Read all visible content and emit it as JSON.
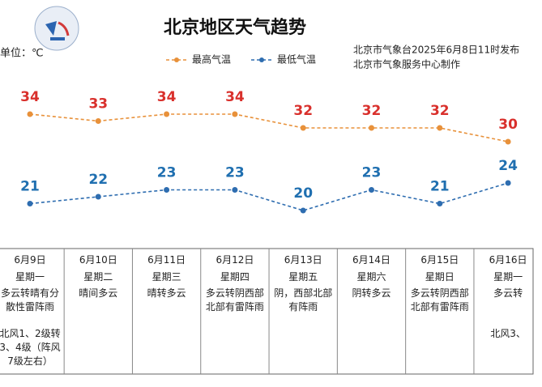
{
  "chart_data": {
    "type": "line",
    "title": "北京地区天气趋势",
    "unit": "单位：℃",
    "source": [
      "北京市气象台2025年6月8日11时发布",
      "北京市气象服务中心制作"
    ],
    "categories": [
      "6月9日",
      "6月10日",
      "6月11日",
      "6月12日",
      "6月13日",
      "6月14日",
      "6月15日",
      "6月16日"
    ],
    "series": [
      {
        "name": "最高气温",
        "color": "#e8913a",
        "label_color": "#d9302c",
        "values": [
          34,
          33,
          34,
          34,
          32,
          32,
          32,
          30
        ]
      },
      {
        "name": "最低气温",
        "color": "#2e6db0",
        "label_color": "#1f6fb0",
        "values": [
          21,
          22,
          23,
          23,
          20,
          23,
          21,
          24
        ]
      }
    ],
    "ylim": [
      14,
      40
    ],
    "weekdays": [
      "星期一",
      "星期二",
      "星期三",
      "星期四",
      "星期五",
      "星期六",
      "星期日",
      "星期一"
    ],
    "weather": [
      "多云转晴有分散性雷阵雨",
      "晴间多云",
      "晴转多云",
      "多云转阴西部北部有雷阵雨",
      "阴，西部北部有阵雨",
      "阴转多云",
      "多云转阴西部北部有雷阵雨",
      "多云转"
    ],
    "wind": [
      "北风1、2级转3、4级（阵风7级左右）",
      "",
      "",
      "",
      "",
      "",
      "",
      "北风3、"
    ]
  }
}
